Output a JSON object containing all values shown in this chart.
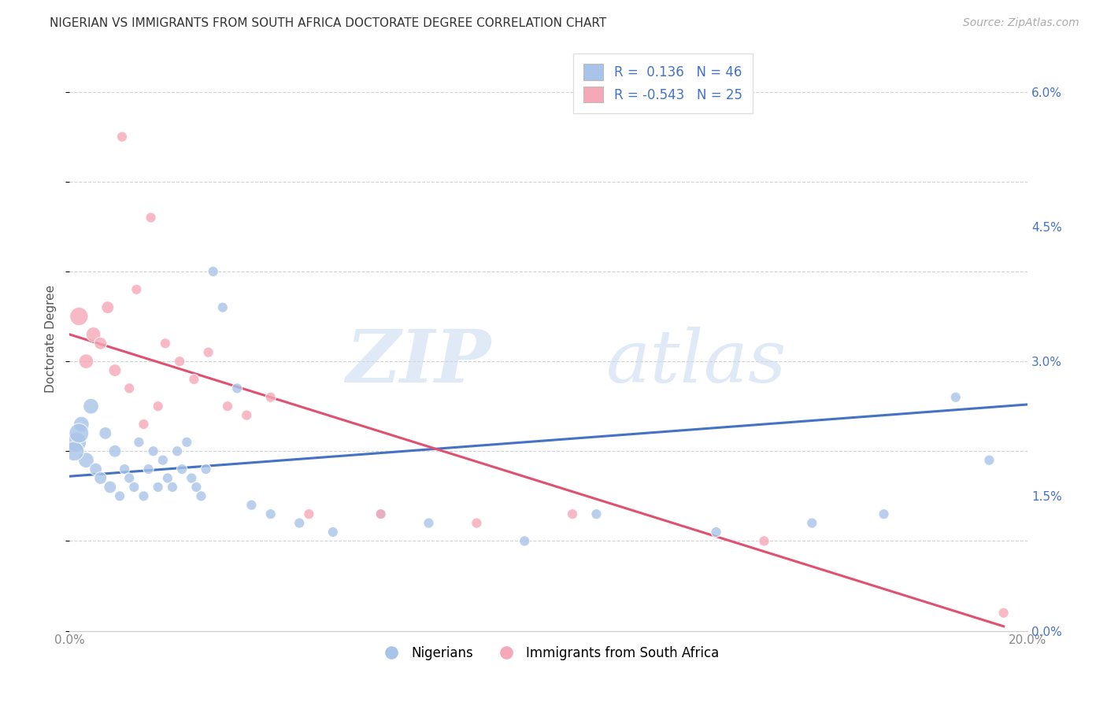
{
  "title": "NIGERIAN VS IMMIGRANTS FROM SOUTH AFRICA DOCTORATE DEGREE CORRELATION CHART",
  "source": "Source: ZipAtlas.com",
  "ylabel": "Doctorate Degree",
  "right_yticks": [
    "0.0%",
    "1.5%",
    "3.0%",
    "4.5%",
    "6.0%"
  ],
  "right_ytick_vals": [
    0.0,
    1.5,
    3.0,
    4.5,
    6.0
  ],
  "xmin": 0.0,
  "xmax": 20.0,
  "ymin": 0.0,
  "ymax": 6.5,
  "legend_blue_r": "R =  0.136",
  "legend_blue_n": "N = 46",
  "legend_pink_r": "R = -0.543",
  "legend_pink_n": "N = 25",
  "blue_color": "#a8c4e8",
  "pink_color": "#f5a8b8",
  "line_blue": "#4472c4",
  "line_pink": "#e05070",
  "nigerians_x": [
    0.15,
    0.25,
    0.35,
    0.45,
    0.55,
    0.65,
    0.75,
    0.85,
    0.95,
    1.05,
    1.15,
    1.25,
    1.35,
    1.45,
    1.55,
    1.65,
    1.75,
    1.85,
    1.95,
    2.05,
    2.15,
    2.25,
    2.35,
    2.45,
    2.55,
    2.65,
    2.75,
    2.85,
    3.0,
    3.2,
    3.5,
    3.8,
    4.2,
    4.8,
    5.5,
    6.5,
    7.5,
    9.5,
    11.0,
    13.5,
    15.5,
    17.0,
    18.5,
    19.2,
    0.1,
    0.2
  ],
  "nigerians_y": [
    2.1,
    2.3,
    1.9,
    2.5,
    1.8,
    1.7,
    2.2,
    1.6,
    2.0,
    1.5,
    1.8,
    1.7,
    1.6,
    2.1,
    1.5,
    1.8,
    2.0,
    1.6,
    1.9,
    1.7,
    1.6,
    2.0,
    1.8,
    2.1,
    1.7,
    1.6,
    1.5,
    1.8,
    4.0,
    3.6,
    2.7,
    1.4,
    1.3,
    1.2,
    1.1,
    1.3,
    1.2,
    1.0,
    1.3,
    1.1,
    1.2,
    1.3,
    2.6,
    1.9,
    2.0,
    2.2
  ],
  "immigrants_x": [
    0.2,
    0.5,
    0.8,
    1.1,
    1.4,
    1.7,
    2.0,
    2.3,
    2.6,
    2.9,
    3.3,
    3.7,
    4.2,
    5.0,
    6.5,
    8.5,
    10.5,
    14.5,
    19.5,
    0.35,
    0.65,
    0.95,
    1.25,
    1.55,
    1.85
  ],
  "immigrants_y": [
    3.5,
    3.3,
    3.6,
    5.5,
    3.8,
    4.6,
    3.2,
    3.0,
    2.8,
    3.1,
    2.5,
    2.4,
    2.6,
    1.3,
    1.3,
    1.2,
    1.3,
    1.0,
    0.2,
    3.0,
    3.2,
    2.9,
    2.7,
    2.3,
    2.5
  ],
  "blue_trendline_x": [
    0.0,
    20.0
  ],
  "blue_trendline_y": [
    1.72,
    2.52
  ],
  "pink_trendline_x": [
    0.0,
    19.5
  ],
  "pink_trendline_y": [
    3.3,
    0.05
  ]
}
